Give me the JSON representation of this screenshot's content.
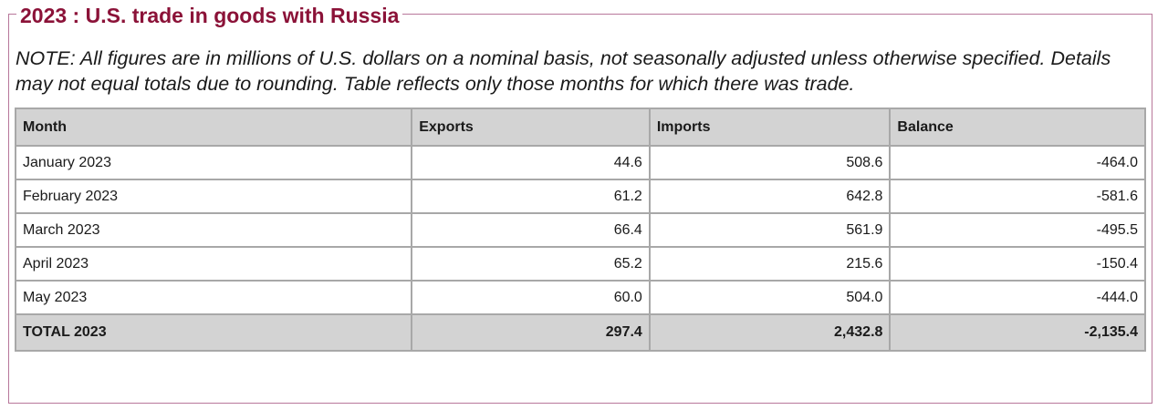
{
  "title": "2023 : U.S. trade in goods with Russia",
  "note": "NOTE: All figures are in millions of U.S. dollars on a nominal basis, not seasonally adjusted unless otherwise specified. Details may not equal totals due to rounding. Table reflects only those months for which there was trade.",
  "table": {
    "headers": [
      "Month",
      "Exports",
      "Imports",
      "Balance"
    ],
    "rows": [
      {
        "month": "January 2023",
        "exports": "44.6",
        "imports": "508.6",
        "balance": "-464.0"
      },
      {
        "month": "February 2023",
        "exports": "61.2",
        "imports": "642.8",
        "balance": "-581.6"
      },
      {
        "month": "March 2023",
        "exports": "66.4",
        "imports": "561.9",
        "balance": "-495.5"
      },
      {
        "month": "April 2023",
        "exports": "65.2",
        "imports": "215.6",
        "balance": "-150.4"
      },
      {
        "month": "May 2023",
        "exports": "60.0",
        "imports": "504.0",
        "balance": "-444.0"
      }
    ],
    "total": {
      "month": "TOTAL 2023",
      "exports": "297.4",
      "imports": "2,432.8",
      "balance": "-2,135.4"
    }
  },
  "colors": {
    "title": "#8b1238",
    "frame_border": "#b8779a",
    "header_bg": "#d3d3d3",
    "cell_border": "#a8a8a8"
  }
}
